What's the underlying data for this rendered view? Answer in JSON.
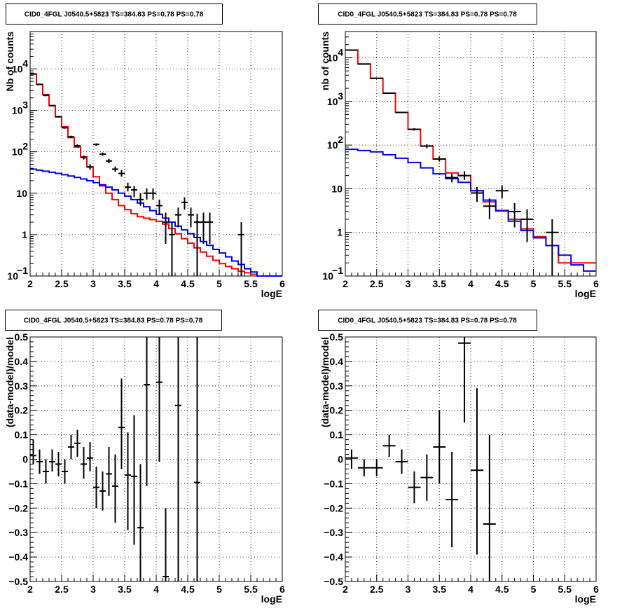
{
  "chart_data": [
    {
      "id": "p1",
      "type": "histogram",
      "title": "CID0_4FGL J0540.5+5823 TS=384.83 PS=0.78 PS=0.78",
      "xlabel": "logE",
      "ylabel": "Nb of counts",
      "xlim": [
        2,
        6
      ],
      "ylim": [
        0.1,
        80000
      ],
      "log_y": true,
      "grid": true,
      "xticks": [
        {
          "v": 2,
          "t": "2"
        },
        {
          "v": 2.5,
          "t": "2.5"
        },
        {
          "v": 3,
          "t": "3"
        },
        {
          "v": 3.5,
          "t": "3.5"
        },
        {
          "v": 4,
          "t": "4"
        },
        {
          "v": 4.5,
          "t": "4.5"
        },
        {
          "v": 5,
          "t": "5"
        },
        {
          "v": 5.5,
          "t": "5.5"
        },
        {
          "v": 6,
          "t": "6"
        }
      ],
      "yticks": [
        {
          "v": 0.1,
          "base": "10",
          "exp": "−1"
        },
        {
          "v": 1,
          "base": "1",
          "exp": ""
        },
        {
          "v": 10,
          "base": "10",
          "exp": ""
        },
        {
          "v": 100,
          "base": "10",
          "exp": "2"
        },
        {
          "v": 1000,
          "base": "10",
          "exp": "3"
        },
        {
          "v": 10000,
          "base": "10",
          "exp": "4"
        }
      ],
      "series": [
        {
          "color": "#ff0000",
          "kind": "step",
          "xmin": 2,
          "step": 0.1,
          "values": [
            7500,
            4200,
            2400,
            1300,
            700,
            400,
            220,
            130,
            75,
            43,
            25,
            15,
            10,
            7,
            5,
            4,
            3.2,
            2.7,
            2.5,
            2.3,
            2.1,
            1.8,
            1.4,
            1.05,
            0.8,
            0.62,
            0.48,
            0.38,
            0.3,
            0.24,
            0.2,
            0.17,
            0.15,
            0.13,
            0.12,
            0.11,
            0.1,
            0.1,
            0.1,
            0.1
          ]
        },
        {
          "color": "#0000ff",
          "kind": "step",
          "xmin": 2,
          "step": 0.1,
          "values": [
            38,
            36,
            34,
            32,
            30,
            28,
            26,
            24,
            22,
            20,
            18,
            16,
            14,
            12,
            10,
            8.5,
            7,
            5.8,
            4.7,
            3.8,
            3.1,
            2.5,
            2,
            1.6,
            1.3,
            1.05,
            0.85,
            0.68,
            0.55,
            0.44,
            0.36,
            0.29,
            0.23,
            0.19,
            0.15,
            0.125,
            0.1,
            0.1,
            0.1,
            0.1
          ]
        }
      ],
      "points": [
        {
          "x": 2.05,
          "y": 7600,
          "dx": 0.05,
          "lo": 7400,
          "hi": 7800
        },
        {
          "x": 2.15,
          "y": 4250,
          "dx": 0.05,
          "lo": 4100,
          "hi": 4400
        },
        {
          "x": 2.25,
          "y": 2300,
          "dx": 0.05,
          "lo": 2200,
          "hi": 2400
        },
        {
          "x": 2.35,
          "y": 1300,
          "dx": 0.05,
          "lo": 1250,
          "hi": 1350
        },
        {
          "x": 2.45,
          "y": 700,
          "dx": 0.05,
          "lo": 670,
          "hi": 730
        },
        {
          "x": 2.55,
          "y": 380,
          "dx": 0.05,
          "lo": 360,
          "hi": 400
        },
        {
          "x": 2.65,
          "y": 230,
          "dx": 0.05,
          "lo": 215,
          "hi": 245
        },
        {
          "x": 2.75,
          "y": 140,
          "dx": 0.05,
          "lo": 128,
          "hi": 152
        },
        {
          "x": 2.85,
          "y": 73,
          "dx": 0.05,
          "lo": 65,
          "hi": 81
        },
        {
          "x": 2.95,
          "y": 43,
          "dx": 0.05,
          "lo": 37,
          "hi": 50
        },
        {
          "x": 3.05,
          "y": 150,
          "dx": 0.05,
          "lo": 140,
          "hi": 160
        },
        {
          "x": 3.15,
          "y": 88,
          "dx": 0.05,
          "lo": 80,
          "hi": 96
        },
        {
          "x": 3.25,
          "y": 60,
          "dx": 0.05,
          "lo": 53,
          "hi": 68
        },
        {
          "x": 3.35,
          "y": 38,
          "dx": 0.05,
          "lo": 33,
          "hi": 44
        },
        {
          "x": 3.45,
          "y": 30,
          "dx": 0.05,
          "lo": 25,
          "hi": 36
        },
        {
          "x": 3.55,
          "y": 14,
          "dx": 0.05,
          "lo": 11,
          "hi": 18
        },
        {
          "x": 3.65,
          "y": 12,
          "dx": 0.05,
          "lo": 8,
          "hi": 15
        },
        {
          "x": 3.75,
          "y": 7,
          "dx": 0.05,
          "lo": 5,
          "hi": 10
        },
        {
          "x": 3.85,
          "y": 10,
          "dx": 0.05,
          "lo": 7,
          "hi": 13
        },
        {
          "x": 3.95,
          "y": 10,
          "dx": 0.05,
          "lo": 7,
          "hi": 13
        },
        {
          "x": 4.05,
          "y": 5,
          "dx": 0.05,
          "lo": 3,
          "hi": 7
        },
        {
          "x": 4.15,
          "y": 2,
          "dx": 0.05,
          "lo": 0.6,
          "hi": 3.4
        },
        {
          "x": 4.25,
          "y": 1,
          "dx": 0.05,
          "lo": 0.1,
          "hi": 2
        },
        {
          "x": 4.35,
          "y": 3,
          "dx": 0.05,
          "lo": 1.5,
          "hi": 4.5
        },
        {
          "x": 4.45,
          "y": 6,
          "dx": 0.05,
          "lo": 4,
          "hi": 8
        },
        {
          "x": 4.55,
          "y": 3,
          "dx": 0.05,
          "lo": 1.5,
          "hi": 4.5
        },
        {
          "x": 4.65,
          "y": 2,
          "dx": 0.05,
          "lo": 0.1,
          "hi": 3.2
        },
        {
          "x": 4.75,
          "y": 2,
          "dx": 0.05,
          "lo": 0.6,
          "hi": 3.4
        },
        {
          "x": 4.85,
          "y": 2,
          "dx": 0.05,
          "lo": 0.6,
          "hi": 3.4
        },
        {
          "x": 5.35,
          "y": 1,
          "dx": 0.05,
          "lo": 0.1,
          "hi": 2
        }
      ]
    },
    {
      "id": "p2",
      "type": "histogram",
      "title": "CID0_4FGL J0540.5+5823 TS=384.83 PS=0.78 PS=0.78",
      "xlabel": "logE",
      "ylabel": "nb of counts",
      "xlim": [
        2,
        6
      ],
      "ylim": [
        0.1,
        40000
      ],
      "log_y": true,
      "grid": true,
      "xticks": [
        {
          "v": 2,
          "t": "2"
        },
        {
          "v": 2.5,
          "t": "2.5"
        },
        {
          "v": 3,
          "t": "3"
        },
        {
          "v": 3.5,
          "t": "3.5"
        },
        {
          "v": 4,
          "t": "4"
        },
        {
          "v": 4.5,
          "t": "4.5"
        },
        {
          "v": 5,
          "t": "5"
        },
        {
          "v": 5.5,
          "t": "5.5"
        },
        {
          "v": 6,
          "t": "6"
        }
      ],
      "yticks": [
        {
          "v": 0.1,
          "base": "10",
          "exp": "−1"
        },
        {
          "v": 1,
          "base": "1",
          "exp": ""
        },
        {
          "v": 10,
          "base": "10",
          "exp": ""
        },
        {
          "v": 100,
          "base": "10",
          "exp": "2"
        },
        {
          "v": 1000,
          "base": "10",
          "exp": "3"
        },
        {
          "v": 10000,
          "base": "10",
          "exp": "4"
        }
      ],
      "series": [
        {
          "color": "#ff0000",
          "kind": "step",
          "xmin": 2,
          "step": 0.2,
          "values": [
            15000,
            7200,
            3400,
            1550,
            560,
            230,
            95,
            48,
            23,
            20,
            9,
            5,
            3.2,
            2,
            1.2,
            0.8,
            0.5,
            0.2,
            0.2,
            0.2
          ]
        },
        {
          "color": "#0000ff",
          "kind": "step",
          "xmin": 2,
          "step": 0.2,
          "values": [
            80,
            75,
            70,
            60,
            50,
            40,
            30,
            22,
            17,
            14,
            9,
            5.5,
            3.1,
            1.8,
            1.1,
            0.75,
            0.5,
            0.3,
            0.18,
            0.13
          ]
        }
      ],
      "points": [
        {
          "x": 2.1,
          "y": 15000,
          "dx": 0.1,
          "lo": 14500,
          "hi": 15500
        },
        {
          "x": 2.3,
          "y": 7200,
          "dx": 0.1,
          "lo": 7000,
          "hi": 7400
        },
        {
          "x": 2.5,
          "y": 3400,
          "dx": 0.1,
          "lo": 3300,
          "hi": 3500
        },
        {
          "x": 2.7,
          "y": 1550,
          "dx": 0.1,
          "lo": 1500,
          "hi": 1600
        },
        {
          "x": 2.9,
          "y": 560,
          "dx": 0.1,
          "lo": 540,
          "hi": 580
        },
        {
          "x": 3.1,
          "y": 230,
          "dx": 0.1,
          "lo": 215,
          "hi": 245
        },
        {
          "x": 3.3,
          "y": 95,
          "dx": 0.1,
          "lo": 85,
          "hi": 105
        },
        {
          "x": 3.5,
          "y": 48,
          "dx": 0.1,
          "lo": 42,
          "hi": 55
        },
        {
          "x": 3.7,
          "y": 18,
          "dx": 0.1,
          "lo": 14,
          "hi": 22
        },
        {
          "x": 3.9,
          "y": 20,
          "dx": 0.1,
          "lo": 16,
          "hi": 25
        },
        {
          "x": 4.1,
          "y": 8,
          "dx": 0.1,
          "lo": 5,
          "hi": 11
        },
        {
          "x": 4.3,
          "y": 4,
          "dx": 0.1,
          "lo": 2,
          "hi": 6
        },
        {
          "x": 4.5,
          "y": 9,
          "dx": 0.1,
          "lo": 6,
          "hi": 12
        },
        {
          "x": 4.7,
          "y": 3,
          "dx": 0.1,
          "lo": 1.3,
          "hi": 4.7
        },
        {
          "x": 4.9,
          "y": 2,
          "dx": 0.1,
          "lo": 0.6,
          "hi": 3.4
        },
        {
          "x": 5.3,
          "y": 1,
          "dx": 0.1,
          "lo": 0.1,
          "hi": 2
        }
      ]
    },
    {
      "id": "p3",
      "type": "scatter",
      "title": "CID0_4FGL J0540.5+5823 TS=384.83 PS=0.78 PS=0.78",
      "xlabel": "logE",
      "ylabel": "(data-model)/model",
      "xlim": [
        2,
        6
      ],
      "ylim": [
        -0.5,
        0.5
      ],
      "log_y": false,
      "grid": true,
      "xticks": [
        {
          "v": 2,
          "t": "2"
        },
        {
          "v": 2.5,
          "t": "2.5"
        },
        {
          "v": 3,
          "t": "3"
        },
        {
          "v": 3.5,
          "t": "3.5"
        },
        {
          "v": 4,
          "t": "4"
        },
        {
          "v": 4.5,
          "t": "4.5"
        },
        {
          "v": 5,
          "t": "5"
        },
        {
          "v": 5.5,
          "t": "5.5"
        },
        {
          "v": 6,
          "t": "6"
        }
      ],
      "yticks": [
        {
          "v": -0.5,
          "t": "−0.5"
        },
        {
          "v": -0.4,
          "t": "−0.4"
        },
        {
          "v": -0.3,
          "t": "−0.3"
        },
        {
          "v": -0.2,
          "t": "−0.2"
        },
        {
          "v": -0.1,
          "t": "−0.1"
        },
        {
          "v": 0,
          "t": "0"
        },
        {
          "v": 0.1,
          "t": "0.1"
        },
        {
          "v": 0.2,
          "t": "0.2"
        },
        {
          "v": 0.3,
          "t": "0.3"
        },
        {
          "v": 0.4,
          "t": "0.4"
        },
        {
          "v": 0.5,
          "t": "0.5"
        }
      ],
      "series": [],
      "points": [
        {
          "x": 2.05,
          "y": 0.015,
          "dx": 0.05,
          "lo": -0.02,
          "hi": 0.08
        },
        {
          "x": 2.15,
          "y": -0.01,
          "dx": 0.05,
          "lo": -0.06,
          "hi": 0.04
        },
        {
          "x": 2.25,
          "y": -0.05,
          "dx": 0.05,
          "lo": -0.1,
          "hi": 0.0
        },
        {
          "x": 2.35,
          "y": -0.01,
          "dx": 0.05,
          "lo": -0.05,
          "hi": 0.04
        },
        {
          "x": 2.45,
          "y": -0.02,
          "dx": 0.05,
          "lo": -0.07,
          "hi": 0.03
        },
        {
          "x": 2.55,
          "y": -0.05,
          "dx": 0.05,
          "lo": -0.1,
          "hi": 0.0
        },
        {
          "x": 2.65,
          "y": 0.05,
          "dx": 0.05,
          "lo": 0.0,
          "hi": 0.1
        },
        {
          "x": 2.75,
          "y": 0.065,
          "dx": 0.05,
          "lo": 0.01,
          "hi": 0.12
        },
        {
          "x": 2.85,
          "y": -0.02,
          "dx": 0.05,
          "lo": -0.08,
          "hi": 0.05
        },
        {
          "x": 2.95,
          "y": 0.005,
          "dx": 0.05,
          "lo": -0.05,
          "hi": 0.07
        },
        {
          "x": 3.05,
          "y": -0.115,
          "dx": 0.05,
          "lo": -0.2,
          "hi": -0.03
        },
        {
          "x": 3.15,
          "y": -0.13,
          "dx": 0.05,
          "lo": -0.21,
          "hi": -0.05
        },
        {
          "x": 3.25,
          "y": -0.06,
          "dx": 0.05,
          "lo": -0.15,
          "hi": 0.05
        },
        {
          "x": 3.35,
          "y": -0.11,
          "dx": 0.05,
          "lo": -0.26,
          "hi": 0.02
        },
        {
          "x": 3.45,
          "y": 0.13,
          "dx": 0.05,
          "lo": -0.04,
          "hi": 0.33
        },
        {
          "x": 3.55,
          "y": -0.065,
          "dx": 0.05,
          "lo": -0.29,
          "hi": 0.11
        },
        {
          "x": 3.65,
          "y": -0.07,
          "dx": 0.05,
          "lo": -0.35,
          "hi": 0.18
        },
        {
          "x": 3.75,
          "y": -0.28,
          "dx": 0.05,
          "lo": -0.5,
          "hi": -0.02
        },
        {
          "x": 3.85,
          "y": 0.305,
          "dx": 0.05,
          "lo": -0.11,
          "hi": 0.5
        },
        {
          "x": 4.05,
          "y": 0.315,
          "dx": 0.05,
          "lo": -0.01,
          "hi": 0.5
        },
        {
          "x": 4.15,
          "y": -0.48,
          "dx": 0.05,
          "lo": -0.5,
          "hi": -0.2
        },
        {
          "x": 4.35,
          "y": 0.22,
          "dx": 0.05,
          "lo": -0.5,
          "hi": 0.5
        },
        {
          "x": 4.65,
          "y": -0.095,
          "dx": 0.05,
          "lo": -0.5,
          "hi": 0.5
        }
      ]
    },
    {
      "id": "p4",
      "type": "scatter",
      "title": "CID0_4FGL J0540.5+5823 TS=384.83 PS=0.78 PS=0.78",
      "xlabel": "logE",
      "ylabel": "(data-model)/model",
      "xlim": [
        2,
        6
      ],
      "ylim": [
        -0.5,
        0.5
      ],
      "log_y": false,
      "grid": true,
      "xticks": [
        {
          "v": 2,
          "t": "2"
        },
        {
          "v": 2.5,
          "t": "2.5"
        },
        {
          "v": 3,
          "t": "3"
        },
        {
          "v": 3.5,
          "t": "3.5"
        },
        {
          "v": 4,
          "t": "4"
        },
        {
          "v": 4.5,
          "t": "4.5"
        },
        {
          "v": 5,
          "t": "5"
        },
        {
          "v": 5.5,
          "t": "5.5"
        },
        {
          "v": 6,
          "t": "6"
        }
      ],
      "yticks": [
        {
          "v": -0.5,
          "t": "−0.5"
        },
        {
          "v": -0.4,
          "t": "−0.4"
        },
        {
          "v": -0.3,
          "t": "−0.3"
        },
        {
          "v": -0.2,
          "t": "−0.2"
        },
        {
          "v": -0.1,
          "t": "−0.1"
        },
        {
          "v": 0,
          "t": "0"
        },
        {
          "v": 0.1,
          "t": "0.1"
        },
        {
          "v": 0.2,
          "t": "0.2"
        },
        {
          "v": 0.3,
          "t": "0.3"
        },
        {
          "v": 0.4,
          "t": "0.4"
        },
        {
          "v": 0.5,
          "t": "0.5"
        }
      ],
      "series": [],
      "points": [
        {
          "x": 2.1,
          "y": 0.005,
          "dx": 0.1,
          "lo": -0.04,
          "hi": 0.04
        },
        {
          "x": 2.3,
          "y": -0.035,
          "dx": 0.1,
          "lo": -0.07,
          "hi": 0.0
        },
        {
          "x": 2.5,
          "y": -0.035,
          "dx": 0.1,
          "lo": -0.07,
          "hi": 0.0
        },
        {
          "x": 2.7,
          "y": 0.055,
          "dx": 0.1,
          "lo": 0.01,
          "hi": 0.1
        },
        {
          "x": 2.9,
          "y": -0.01,
          "dx": 0.1,
          "lo": -0.06,
          "hi": 0.04
        },
        {
          "x": 3.1,
          "y": -0.115,
          "dx": 0.1,
          "lo": -0.18,
          "hi": -0.05
        },
        {
          "x": 3.3,
          "y": -0.075,
          "dx": 0.1,
          "lo": -0.17,
          "hi": 0.02
        },
        {
          "x": 3.5,
          "y": 0.05,
          "dx": 0.1,
          "lo": -0.1,
          "hi": 0.2
        },
        {
          "x": 3.7,
          "y": -0.165,
          "dx": 0.1,
          "lo": -0.36,
          "hi": 0.03
        },
        {
          "x": 3.9,
          "y": 0.475,
          "dx": 0.1,
          "lo": 0.15,
          "hi": 0.5
        },
        {
          "x": 4.1,
          "y": -0.045,
          "dx": 0.1,
          "lo": -0.39,
          "hi": 0.29
        },
        {
          "x": 4.3,
          "y": -0.265,
          "dx": 0.1,
          "lo": -0.5,
          "hi": 0.1
        }
      ]
    }
  ]
}
